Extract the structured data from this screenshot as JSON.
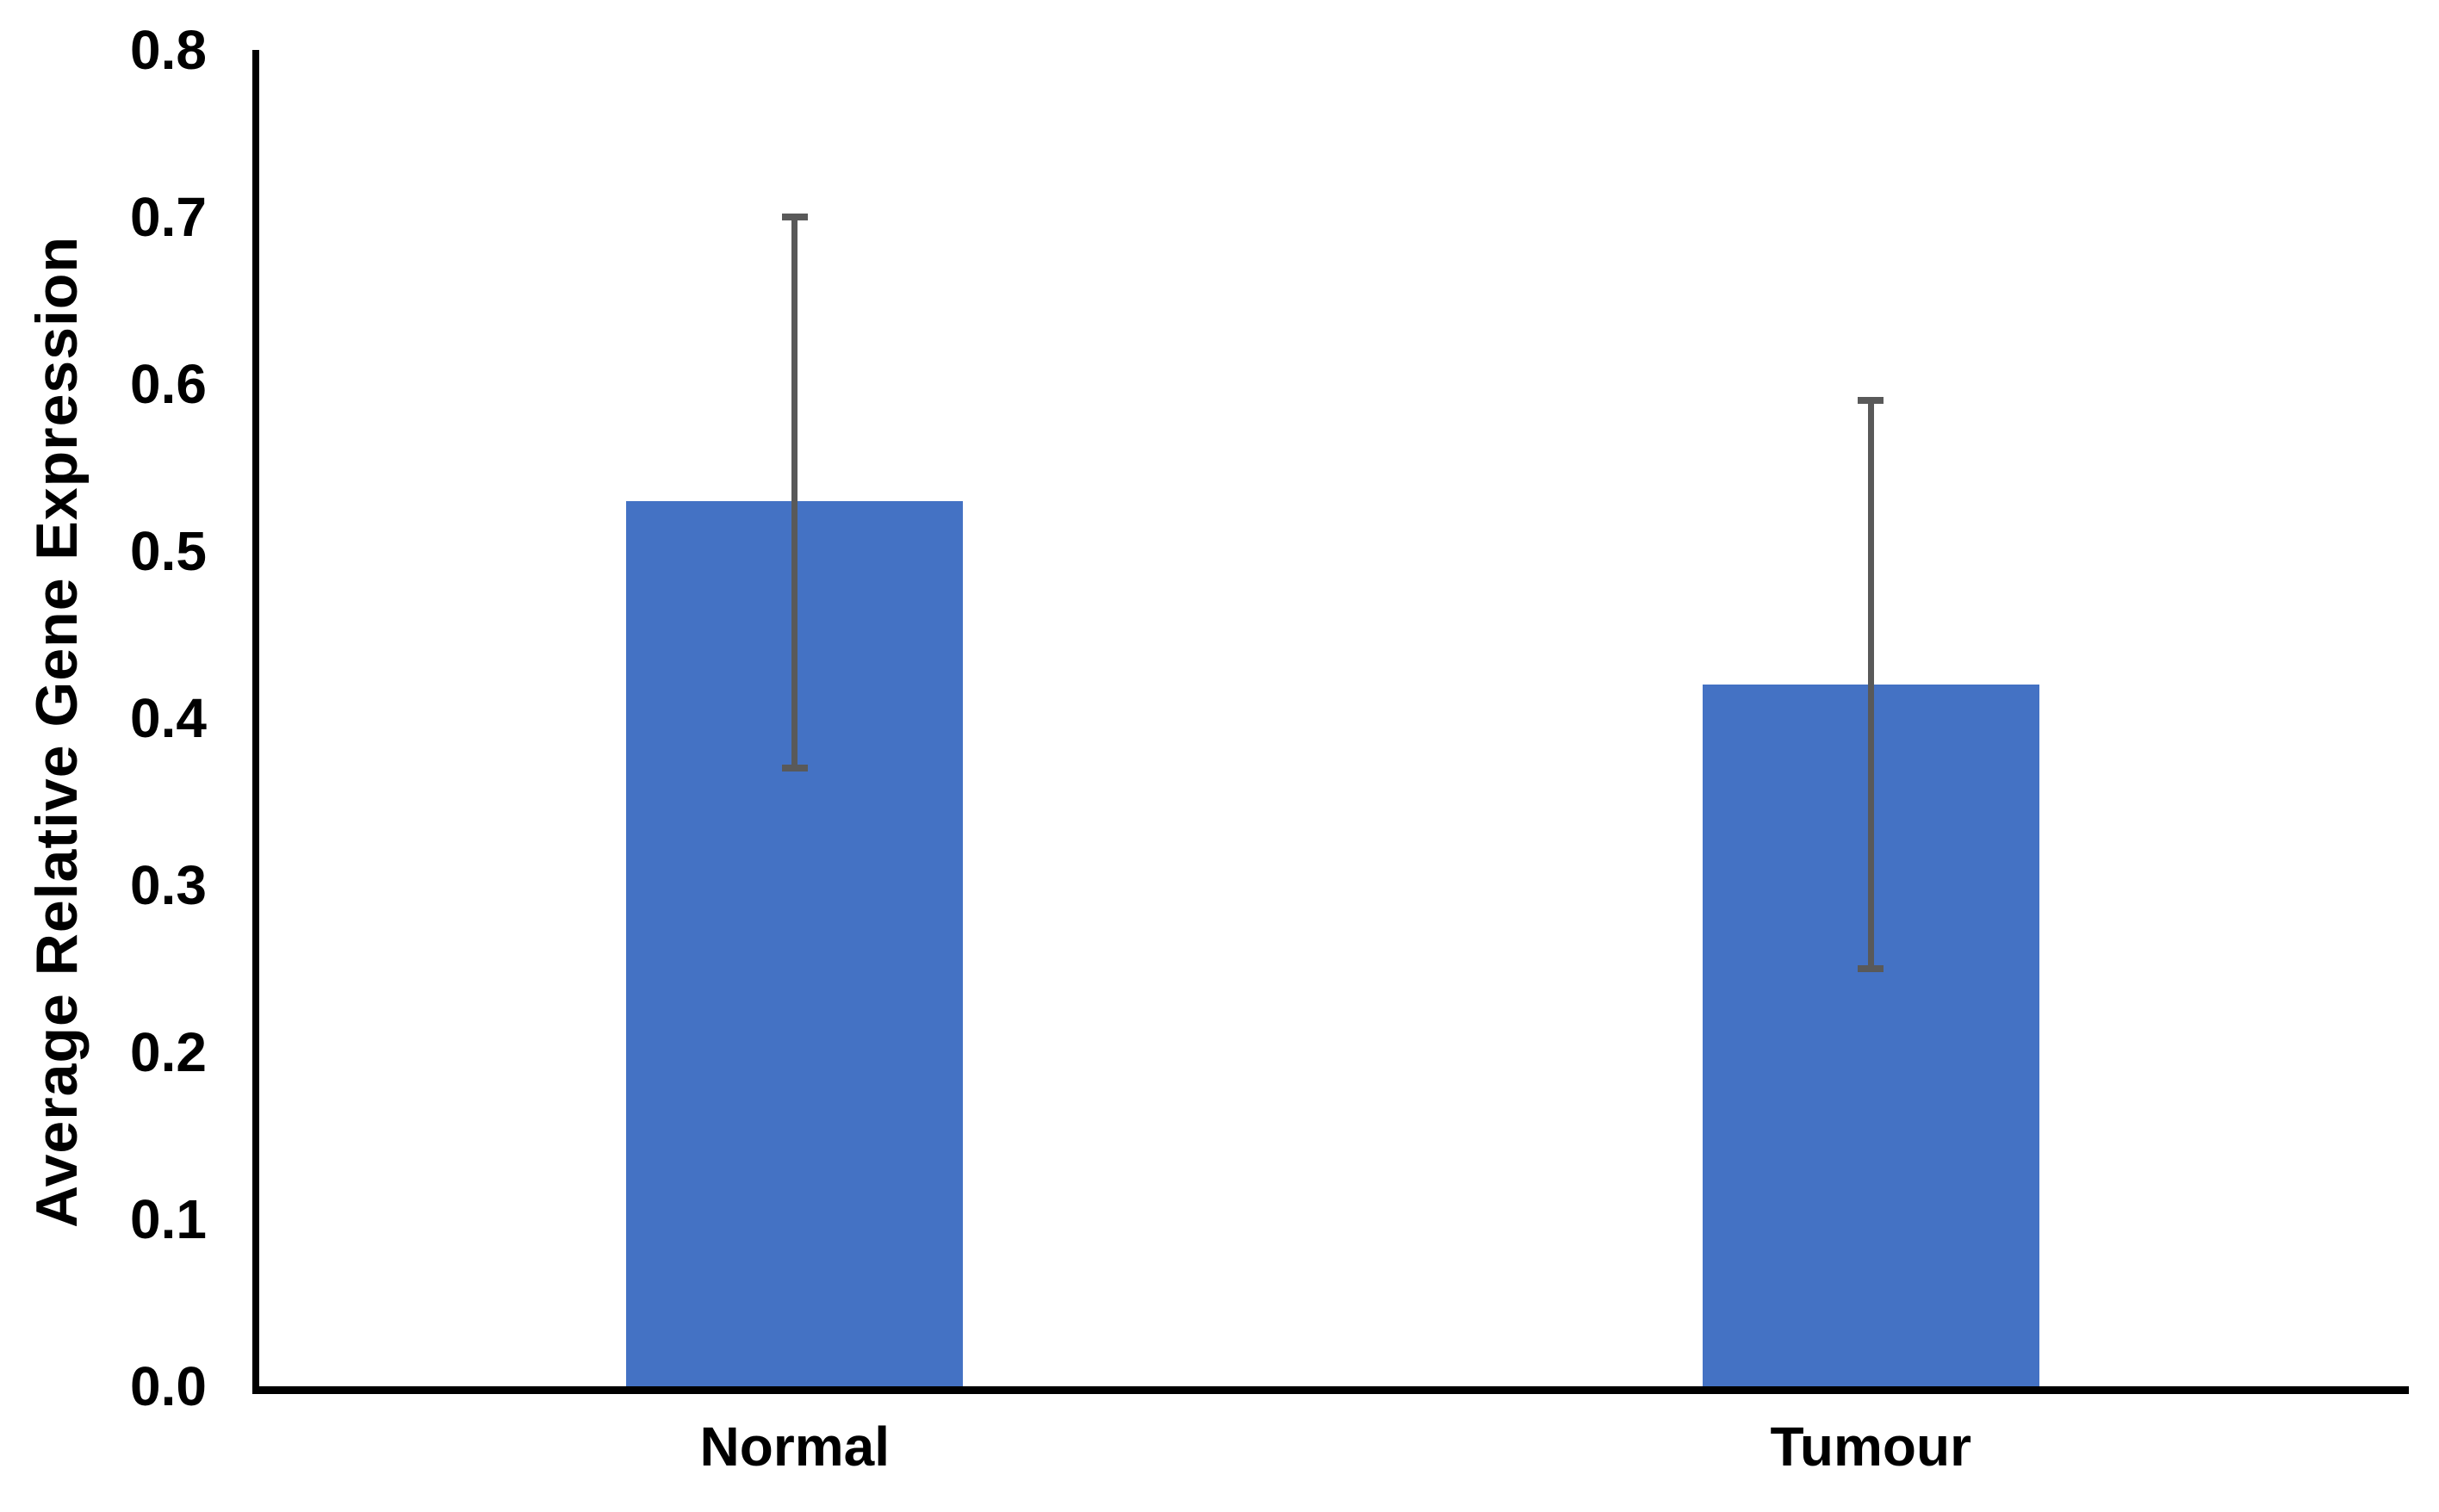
{
  "chart_data": {
    "type": "bar",
    "title": "",
    "categories": [
      "Normal",
      "Tumour"
    ],
    "values": [
      0.53,
      0.42
    ],
    "error_bars": {
      "low": [
        0.37,
        0.25
      ],
      "high": [
        0.7,
        0.59
      ]
    },
    "xlabel": "",
    "ylabel": "Average Relative Gene Expression",
    "ylim": [
      0.0,
      0.8
    ],
    "ytick_step": 0.1,
    "ytick_labels": [
      "0.0",
      "0.1",
      "0.2",
      "0.3",
      "0.4",
      "0.5",
      "0.6",
      "0.7",
      "0.8"
    ],
    "grid": false,
    "legend_position": "none",
    "bar_color": "#4472C4",
    "error_bar_color": "#595959",
    "axis_color": "#000000",
    "text_color": "#000000"
  }
}
